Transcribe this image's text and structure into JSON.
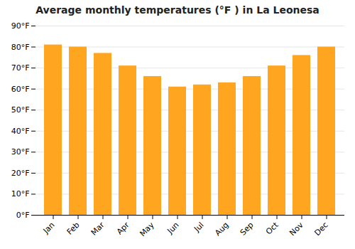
{
  "chart_data": {
    "type": "bar",
    "title": "Average monthly temperatures (°F ) in La Leonesa",
    "categories": [
      "Jan",
      "Feb",
      "Mar",
      "Apr",
      "May",
      "Jun",
      "Jul",
      "Aug",
      "Sep",
      "Oct",
      "Nov",
      "Dec"
    ],
    "values": [
      81,
      80,
      77,
      71,
      66,
      61,
      62,
      63,
      66,
      71,
      76,
      80
    ],
    "color": "#FFA520",
    "ylim": [
      0,
      90
    ],
    "yticks": [
      {
        "value": 0,
        "label": "0°F"
      },
      {
        "value": 10,
        "label": "10°F"
      },
      {
        "value": 20,
        "label": "20°F"
      },
      {
        "value": 30,
        "label": "30°F"
      },
      {
        "value": 40,
        "label": "40°F"
      },
      {
        "value": 50,
        "label": "50°F"
      },
      {
        "value": 60,
        "label": "60°F"
      },
      {
        "value": 70,
        "label": "70°F"
      },
      {
        "value": 80,
        "label": "80°F"
      },
      {
        "value": 90,
        "label": "90°F"
      }
    ],
    "grid": true
  }
}
